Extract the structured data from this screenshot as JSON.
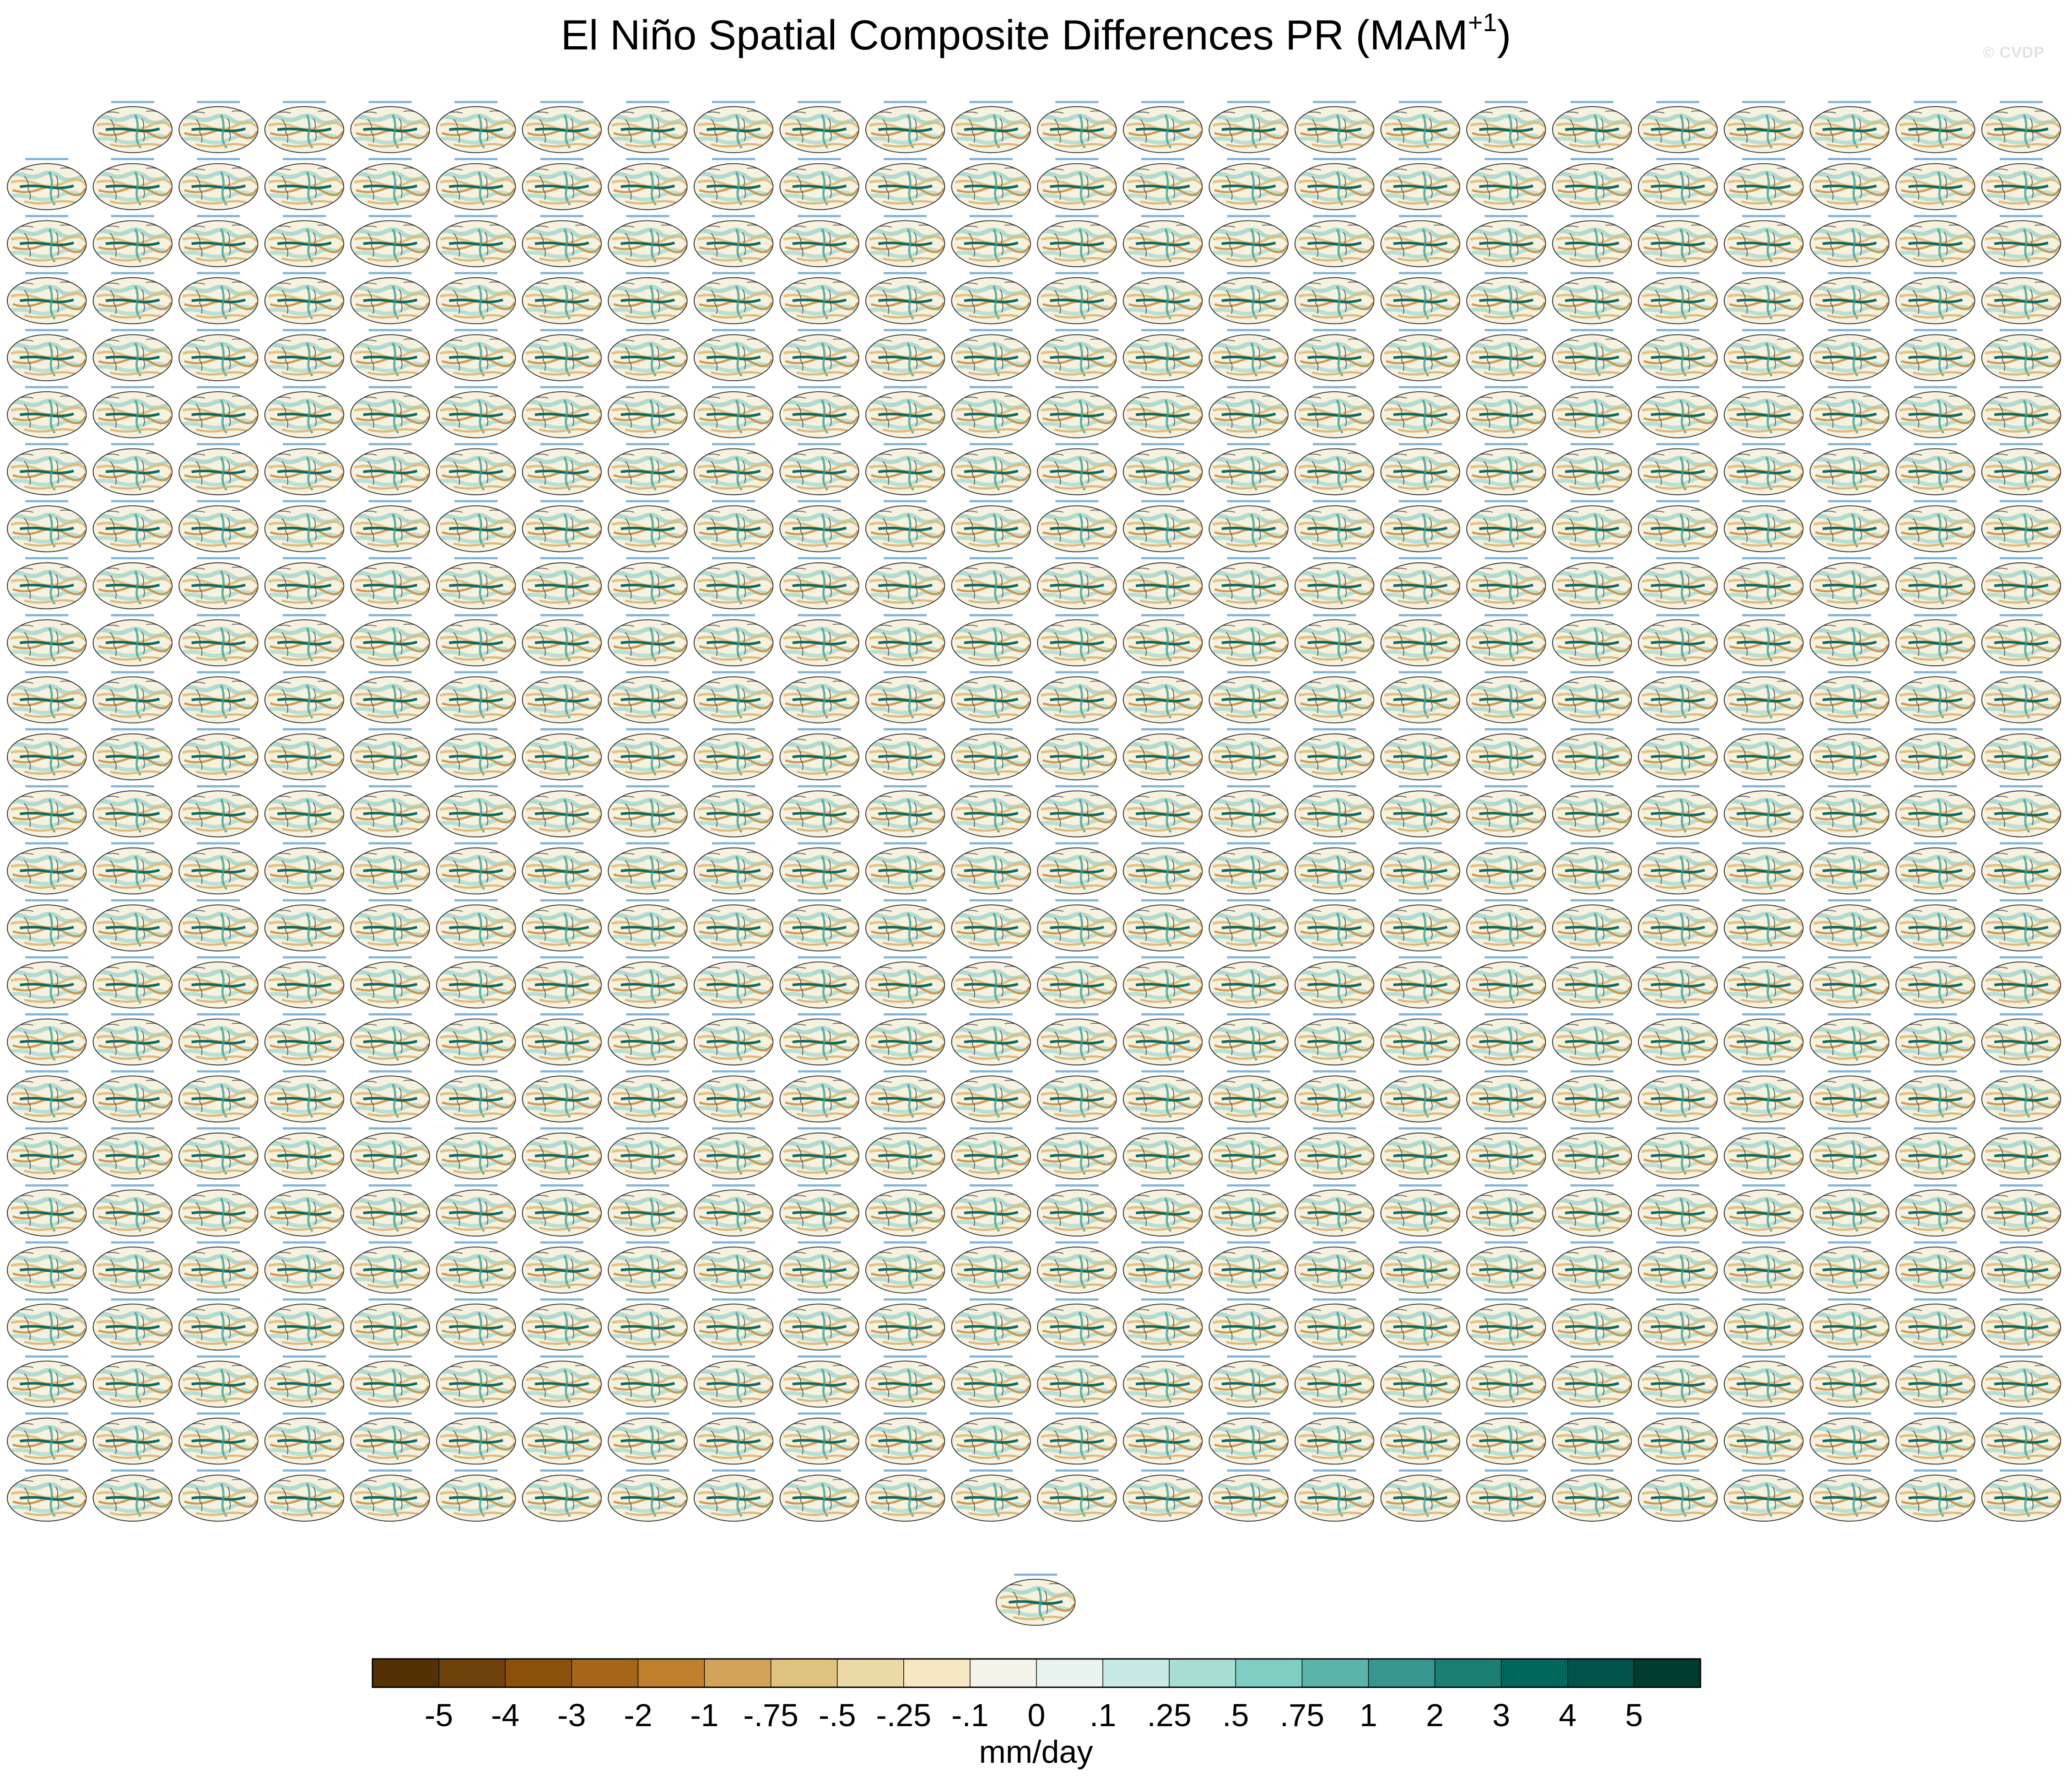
{
  "figure": {
    "title": "El Niño Spatial Composite Differences PR (MAM",
    "title_sup": "+1",
    "title_close": ")",
    "watermark": "© CVDP"
  },
  "panels": {
    "rows": 25,
    "columns": 24,
    "first_row_count": 23,
    "extra_bottom_panel": 1,
    "panel_caption": "CESM1 member – DJF"
  },
  "chart_data": {
    "type": "heatmap",
    "title": "El Niño Spatial Composite Differences PR (MAM+1)",
    "colorbar": {
      "label": "mm/day",
      "levels": [
        "-5",
        "-4",
        "-3",
        "-2",
        "-1",
        "-.75",
        "-.5",
        "-.25",
        "-.1",
        "0",
        ".1",
        ".25",
        ".5",
        ".75",
        "1",
        "2",
        "3",
        "4",
        "5"
      ],
      "level_values": [
        -5,
        -4,
        -3,
        -2,
        -1,
        -0.75,
        -0.5,
        -0.25,
        -0.1,
        0,
        0.1,
        0.25,
        0.5,
        0.75,
        1,
        2,
        3,
        4,
        5
      ],
      "colors": [
        "#543005",
        "#6e400a",
        "#8c510a",
        "#a6661a",
        "#bf812d",
        "#d2a45a",
        "#dfc27d",
        "#ecd9a8",
        "#f6e8c3",
        "#f5f2e9",
        "#e8f3f0",
        "#c7eae5",
        "#a8ddd4",
        "#80cdc1",
        "#5ab4a7",
        "#35978f",
        "#1a7f71",
        "#01665e",
        "#01544a",
        "#003c30"
      ]
    }
  }
}
